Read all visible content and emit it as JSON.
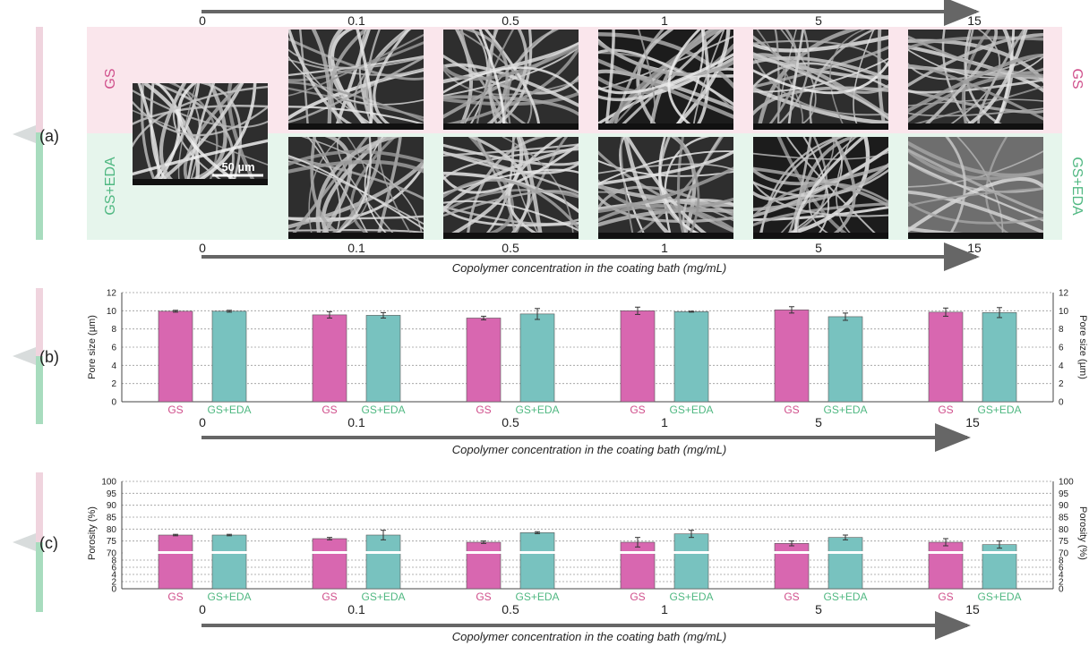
{
  "colors": {
    "gs": "#d867b0",
    "gsEda": "#78c2bf",
    "gsText": "#d0508c",
    "gsEdaText": "#50b882",
    "pinkBg": "#fae6ec",
    "greenBg": "#e6f5ec",
    "arrow": "#666666",
    "panelPink": "#f0d4de",
    "panelGreen": "#a8dcbe"
  },
  "concentrations": [
    "0",
    "0.1",
    "0.5",
    "1",
    "5",
    "15"
  ],
  "axisTitle": "Copolymer concentration in the coating bath (mg/mL)",
  "panelA": {
    "label": "(a)",
    "rowTop": "GS",
    "rowBottom": "GS+EDA",
    "scaleBar": "50 µm",
    "micrographs": [
      {
        "name": "sem-image-0",
        "shade": "mid"
      },
      {
        "name": "sem-image-gs-0.1",
        "shade": "mid"
      },
      {
        "name": "sem-image-gs-0.5",
        "shade": "mid"
      },
      {
        "name": "sem-image-gs-1",
        "shade": "dark"
      },
      {
        "name": "sem-image-gs-5",
        "shade": "mid"
      },
      {
        "name": "sem-image-gs-15",
        "shade": "mid"
      },
      {
        "name": "sem-image-gseda-0.1",
        "shade": "mid"
      },
      {
        "name": "sem-image-gseda-0.5",
        "shade": "mid"
      },
      {
        "name": "sem-image-gseda-1",
        "shade": "mid"
      },
      {
        "name": "sem-image-gseda-5",
        "shade": "dark"
      },
      {
        "name": "sem-image-gseda-15",
        "shade": "light"
      }
    ]
  },
  "chart_data": [
    {
      "type": "bar",
      "panel": "(b)",
      "ylabel": "Pore size (µm)",
      "ylim": [
        0,
        12
      ],
      "yticks": [
        0,
        2,
        4,
        6,
        8,
        10,
        12
      ],
      "grid": true,
      "categories": [
        "0",
        "0.1",
        "0.5",
        "1",
        "5",
        "15"
      ],
      "series": [
        {
          "name": "GS",
          "values": [
            9.95,
            9.55,
            9.2,
            10.0,
            10.1,
            9.85
          ],
          "errors": [
            0.1,
            0.35,
            0.2,
            0.4,
            0.35,
            0.45
          ]
        },
        {
          "name": "GS+EDA",
          "values": [
            9.95,
            9.5,
            9.65,
            9.9,
            9.35,
            9.8
          ],
          "errors": [
            0.1,
            0.3,
            0.6,
            0.05,
            0.4,
            0.55
          ]
        }
      ],
      "xlabel": "Copolymer concentration in the coating bath (mg/mL)"
    },
    {
      "type": "bar",
      "panel": "(c)",
      "ylabel": "Porosity (%)",
      "ylim": [
        0,
        100
      ],
      "yticks": [
        0,
        2,
        4,
        6,
        8,
        70,
        75,
        80,
        85,
        90,
        95,
        100
      ],
      "broken_axis": "0–10 then 70–100",
      "grid": true,
      "categories": [
        "0",
        "0.1",
        "0.5",
        "1",
        "5",
        "15"
      ],
      "series": [
        {
          "name": "GS",
          "values": [
            77.5,
            76.0,
            74.5,
            74.5,
            74.0,
            74.5
          ],
          "errors": [
            0.3,
            0.5,
            0.5,
            2.0,
            1.0,
            1.5
          ]
        },
        {
          "name": "GS+EDA",
          "values": [
            77.5,
            77.5,
            78.5,
            78.0,
            76.5,
            73.5
          ],
          "errors": [
            0.3,
            2.0,
            0.4,
            1.5,
            1.0,
            1.5
          ]
        }
      ],
      "xlabel": "Copolymer concentration in the coating bath (mg/mL)"
    }
  ]
}
